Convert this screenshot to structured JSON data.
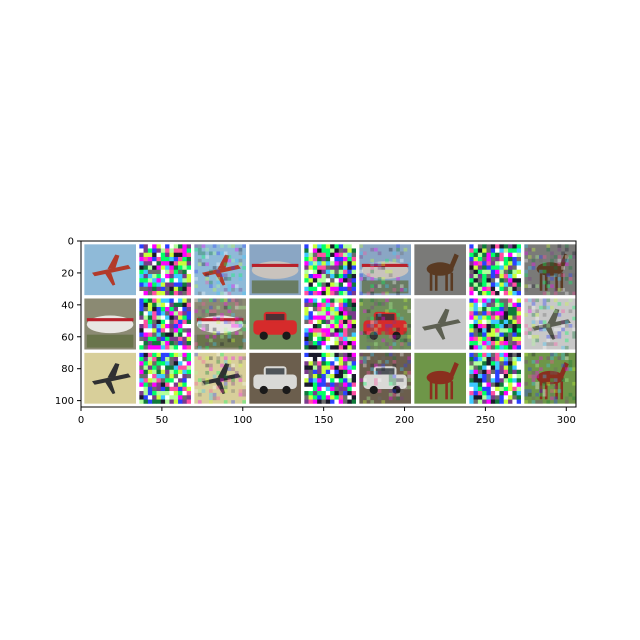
{
  "chart_data": {
    "type": "image",
    "title": "",
    "xlabel": "",
    "ylabel": "",
    "xlim": [
      0,
      306
    ],
    "ylim": [
      104,
      0
    ],
    "xticks": [
      0,
      50,
      100,
      150,
      200,
      250,
      300
    ],
    "xtick_labels": [
      "0",
      "50",
      "100",
      "150",
      "200",
      "250",
      "300"
    ],
    "yticks": [
      0,
      20,
      40,
      60,
      80,
      100
    ],
    "ytick_labels": [
      "0",
      "20",
      "40",
      "60",
      "80",
      "100"
    ],
    "grid": false,
    "grid_layout": {
      "rows": 3,
      "cols": 9,
      "tile_size": 32,
      "gap": 2
    },
    "tiles": [
      {
        "row": 0,
        "col": 0,
        "kind": "original",
        "subject": "airplane",
        "bg": "#8fbad8",
        "fg": "#b23a2a",
        "shape": "plane"
      },
      {
        "row": 0,
        "col": 1,
        "kind": "noise",
        "seed": 11
      },
      {
        "row": 0,
        "col": 2,
        "kind": "adversarial",
        "subject": "airplane",
        "bg": "#8fbad8",
        "fg": "#b23a2a",
        "shape": "plane",
        "seed": 12
      },
      {
        "row": 0,
        "col": 3,
        "kind": "original",
        "subject": "airplane",
        "bg": "#8aa6c4",
        "fg": "#c9c3bd",
        "shape": "jet"
      },
      {
        "row": 0,
        "col": 4,
        "kind": "noise",
        "seed": 13
      },
      {
        "row": 0,
        "col": 5,
        "kind": "adversarial",
        "subject": "airplane",
        "bg": "#8aa6c4",
        "fg": "#c9c3bd",
        "shape": "jet",
        "seed": 14
      },
      {
        "row": 0,
        "col": 6,
        "kind": "original",
        "subject": "horse",
        "bg": "#7a7a78",
        "fg": "#5a3a22",
        "shape": "horse"
      },
      {
        "row": 0,
        "col": 7,
        "kind": "noise",
        "seed": 15
      },
      {
        "row": 0,
        "col": 8,
        "kind": "adversarial",
        "subject": "horse",
        "bg": "#7a7a78",
        "fg": "#5a3a22",
        "shape": "horse",
        "seed": 16
      },
      {
        "row": 1,
        "col": 0,
        "kind": "original",
        "subject": "airplane",
        "bg": "#8b8a73",
        "fg": "#e8e6e2",
        "shape": "jet"
      },
      {
        "row": 1,
        "col": 1,
        "kind": "noise",
        "seed": 21
      },
      {
        "row": 1,
        "col": 2,
        "kind": "adversarial",
        "subject": "airplane",
        "bg": "#8b8a73",
        "fg": "#e8e6e2",
        "shape": "jet",
        "seed": 22
      },
      {
        "row": 1,
        "col": 3,
        "kind": "original",
        "subject": "car",
        "bg": "#6f8e5a",
        "fg": "#d62b2b",
        "shape": "car"
      },
      {
        "row": 1,
        "col": 4,
        "kind": "noise",
        "seed": 23
      },
      {
        "row": 1,
        "col": 5,
        "kind": "adversarial",
        "subject": "car",
        "bg": "#6f8e5a",
        "fg": "#d62b2b",
        "shape": "car",
        "seed": 24
      },
      {
        "row": 1,
        "col": 6,
        "kind": "original",
        "subject": "airplane",
        "bg": "#c8c8c8",
        "fg": "#5d6052",
        "shape": "plane"
      },
      {
        "row": 1,
        "col": 7,
        "kind": "noise",
        "seed": 25
      },
      {
        "row": 1,
        "col": 8,
        "kind": "adversarial",
        "subject": "airplane",
        "bg": "#c8c8c8",
        "fg": "#5d6052",
        "shape": "plane",
        "seed": 26
      },
      {
        "row": 2,
        "col": 0,
        "kind": "original",
        "subject": "airplane",
        "bg": "#d8cf9a",
        "fg": "#2f3032",
        "shape": "plane"
      },
      {
        "row": 2,
        "col": 1,
        "kind": "noise",
        "seed": 31
      },
      {
        "row": 2,
        "col": 2,
        "kind": "adversarial",
        "subject": "airplane",
        "bg": "#d8cf9a",
        "fg": "#2f3032",
        "shape": "plane",
        "seed": 32
      },
      {
        "row": 2,
        "col": 3,
        "kind": "original",
        "subject": "car",
        "bg": "#6b5e4d",
        "fg": "#d9d9d6",
        "shape": "car"
      },
      {
        "row": 2,
        "col": 4,
        "kind": "noise",
        "seed": 33
      },
      {
        "row": 2,
        "col": 5,
        "kind": "adversarial",
        "subject": "car",
        "bg": "#6b5e4d",
        "fg": "#d9d9d6",
        "shape": "car",
        "seed": 34
      },
      {
        "row": 2,
        "col": 6,
        "kind": "original",
        "subject": "horse",
        "bg": "#6e9648",
        "fg": "#8a2f1e",
        "shape": "horse"
      },
      {
        "row": 2,
        "col": 7,
        "kind": "noise",
        "seed": 35
      },
      {
        "row": 2,
        "col": 8,
        "kind": "adversarial",
        "subject": "horse",
        "bg": "#6e9648",
        "fg": "#8a2f1e",
        "shape": "horse",
        "seed": 36
      }
    ]
  }
}
